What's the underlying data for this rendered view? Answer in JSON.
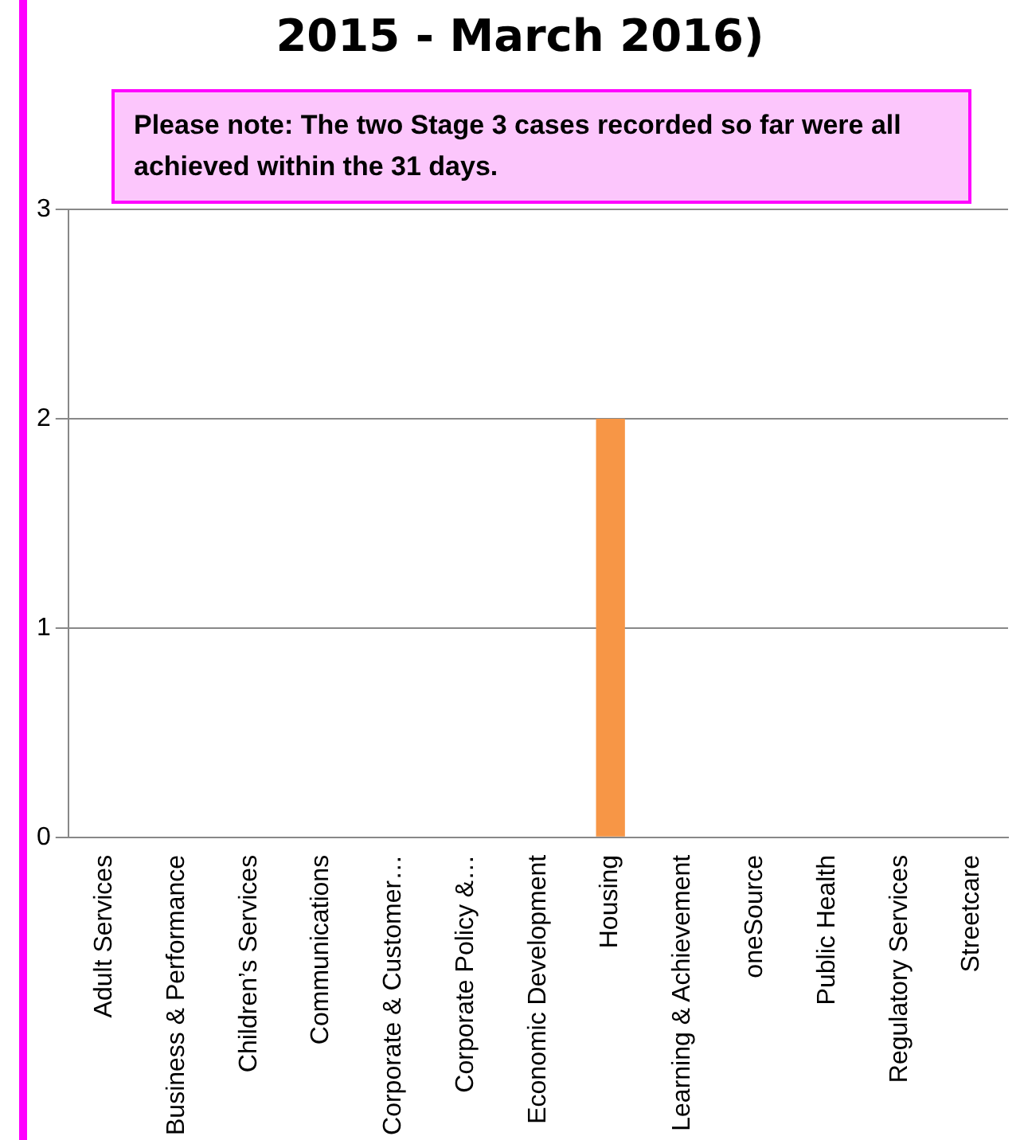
{
  "chart_data": {
    "type": "bar",
    "title": "2015 - March 2016)",
    "categories": [
      "Adult Services",
      "Business & Performance",
      "Children’s Services",
      "Communications",
      "Corporate & Customer…",
      "Corporate Policy &…",
      "Economic Development",
      "Housing",
      "Learning & Achievement",
      "oneSource",
      "Public Health",
      "Regulatory Services",
      "Streetcare"
    ],
    "values": [
      0,
      0,
      0,
      0,
      0,
      0,
      0,
      2,
      0,
      0,
      0,
      0,
      0
    ],
    "color": "#f79646",
    "ylim": [
      0,
      3
    ],
    "yticks": [
      0,
      1,
      2,
      3
    ],
    "grid": "y",
    "legend": false,
    "annotations": [
      "Please note:  The two Stage 3 cases recorded so far were all achieved within the 31 days."
    ]
  }
}
